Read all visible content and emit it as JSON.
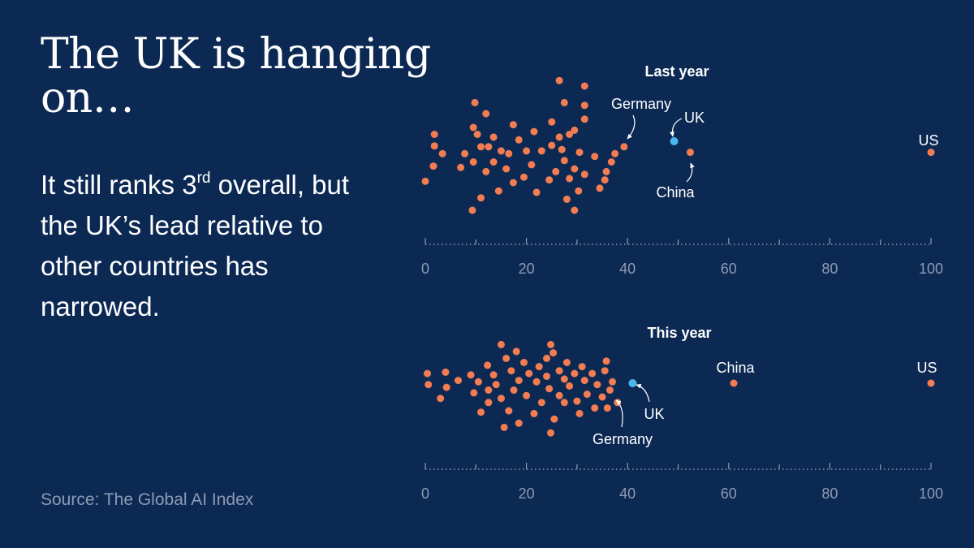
{
  "headline": {
    "title": "The UK is hanging on…",
    "subtitle_pre": "It still ranks 3",
    "subtitle_sup": "rd",
    "subtitle_post": " overall, but the UK’s lead relative to other countries has narrowed."
  },
  "source": "Source: The Global AI Index",
  "colors": {
    "background": "#0c2954",
    "dot": "#f27d52",
    "uk": "#4bb8ec",
    "axis": "#8e9bb2",
    "text": "#ffffff"
  },
  "chart_data": [
    {
      "type": "scatter",
      "title": "Last year",
      "xlim": [
        0,
        100
      ],
      "ticks": [
        0,
        20,
        40,
        60,
        80,
        100
      ],
      "tick_labels": [
        "0",
        "20",
        "40",
        "60",
        "80",
        "100"
      ],
      "annotations": {
        "germany_label": "Germany",
        "uk_label": "UK",
        "china_label": "China",
        "us_label": "US"
      },
      "highlighted": [
        {
          "name": "Germany",
          "x": 39.3,
          "y": 0.3
        },
        {
          "name": "UK",
          "x": 49.2,
          "y": 0.5
        },
        {
          "name": "China",
          "x": 52.4,
          "y": 0.1
        },
        {
          "name": "US",
          "x": 100,
          "y": 0.1
        }
      ],
      "others": [
        {
          "x": 0,
          "y": -0.95
        },
        {
          "x": 1.6,
          "y": -0.4
        },
        {
          "x": 1.8,
          "y": 0.33
        },
        {
          "x": 1.8,
          "y": 0.75
        },
        {
          "x": 3.4,
          "y": 0.05
        },
        {
          "x": 7,
          "y": -0.45
        },
        {
          "x": 7.8,
          "y": 0.05
        },
        {
          "x": 9.3,
          "y": -2.0
        },
        {
          "x": 9.5,
          "y": -0.25
        },
        {
          "x": 9.5,
          "y": 1.0
        },
        {
          "x": 9.8,
          "y": 1.9
        },
        {
          "x": 10.3,
          "y": 0.75
        },
        {
          "x": 11,
          "y": -1.55
        },
        {
          "x": 11,
          "y": 0.3
        },
        {
          "x": 12,
          "y": -0.6
        },
        {
          "x": 12,
          "y": 1.5
        },
        {
          "x": 12.5,
          "y": 0.3
        },
        {
          "x": 13.5,
          "y": -0.25
        },
        {
          "x": 13.5,
          "y": 0.65
        },
        {
          "x": 14.5,
          "y": -1.3
        },
        {
          "x": 15,
          "y": 0.15
        },
        {
          "x": 16,
          "y": -0.5
        },
        {
          "x": 16.5,
          "y": 0.05
        },
        {
          "x": 17.4,
          "y": -1.0
        },
        {
          "x": 17.4,
          "y": 1.1
        },
        {
          "x": 18.5,
          "y": 0.55
        },
        {
          "x": 19.5,
          "y": -0.8
        },
        {
          "x": 20,
          "y": 0.15
        },
        {
          "x": 21,
          "y": -0.35
        },
        {
          "x": 21.5,
          "y": 0.85
        },
        {
          "x": 22,
          "y": -1.35
        },
        {
          "x": 23,
          "y": 0.15
        },
        {
          "x": 24.5,
          "y": -0.9
        },
        {
          "x": 25,
          "y": 0.35
        },
        {
          "x": 25,
          "y": 1.2
        },
        {
          "x": 25.8,
          "y": -0.6
        },
        {
          "x": 26.5,
          "y": 0.65
        },
        {
          "x": 26.5,
          "y": 2.7
        },
        {
          "x": 27,
          "y": 0.2
        },
        {
          "x": 27.5,
          "y": -0.2
        },
        {
          "x": 27.5,
          "y": 1.9
        },
        {
          "x": 28,
          "y": -1.6
        },
        {
          "x": 28.5,
          "y": -0.85
        },
        {
          "x": 28.5,
          "y": 0.75
        },
        {
          "x": 29.5,
          "y": -0.5
        },
        {
          "x": 29.5,
          "y": -2.0
        },
        {
          "x": 29.5,
          "y": 0.9
        },
        {
          "x": 30.3,
          "y": -1.3
        },
        {
          "x": 30.5,
          "y": 0.1
        },
        {
          "x": 31.5,
          "y": 1.3
        },
        {
          "x": 31.5,
          "y": 1.8
        },
        {
          "x": 31.5,
          "y": 2.5
        },
        {
          "x": 31.5,
          "y": -0.7
        },
        {
          "x": 33.5,
          "y": -0.05
        },
        {
          "x": 34.5,
          "y": -1.2
        },
        {
          "x": 35.5,
          "y": -0.9
        },
        {
          "x": 35.8,
          "y": -0.6
        },
        {
          "x": 36.8,
          "y": -0.25
        },
        {
          "x": 37.5,
          "y": 0.05
        }
      ]
    },
    {
      "type": "scatter",
      "title": "This year",
      "xlim": [
        0,
        100
      ],
      "ticks": [
        0,
        20,
        40,
        60,
        80,
        100
      ],
      "tick_labels": [
        "0",
        "20",
        "40",
        "60",
        "80",
        "100"
      ],
      "annotations": {
        "china_label": "China",
        "us_label": "US",
        "uk_label": "UK",
        "germany_label": "Germany"
      },
      "highlighted": [
        {
          "name": "UK",
          "x": 41,
          "y": 0
        },
        {
          "name": "Germany",
          "x": 38,
          "y": -0.7
        },
        {
          "name": "China",
          "x": 61,
          "y": 0
        },
        {
          "name": "US",
          "x": 100,
          "y": 0
        }
      ],
      "others": [
        {
          "x": 0.4,
          "y": 0.35
        },
        {
          "x": 0.6,
          "y": -0.05
        },
        {
          "x": 3,
          "y": -0.55
        },
        {
          "x": 4,
          "y": 0.4
        },
        {
          "x": 4.2,
          "y": -0.15
        },
        {
          "x": 6.5,
          "y": 0.1
        },
        {
          "x": 9,
          "y": 0.3
        },
        {
          "x": 9.6,
          "y": -0.35
        },
        {
          "x": 10.5,
          "y": 0.05
        },
        {
          "x": 11,
          "y": -1.05
        },
        {
          "x": 12.3,
          "y": 0.65
        },
        {
          "x": 12.5,
          "y": -0.7
        },
        {
          "x": 12.5,
          "y": -0.25
        },
        {
          "x": 13.5,
          "y": 0.3
        },
        {
          "x": 14,
          "y": -0.05
        },
        {
          "x": 15,
          "y": -0.55
        },
        {
          "x": 15,
          "y": 1.4
        },
        {
          "x": 15.6,
          "y": -1.6
        },
        {
          "x": 16,
          "y": 0.9
        },
        {
          "x": 16.5,
          "y": -1.0
        },
        {
          "x": 17,
          "y": 0.45
        },
        {
          "x": 17.5,
          "y": -0.25
        },
        {
          "x": 18,
          "y": 1.15
        },
        {
          "x": 18.5,
          "y": 0.1
        },
        {
          "x": 18.5,
          "y": -1.45
        },
        {
          "x": 19.5,
          "y": 0.75
        },
        {
          "x": 20,
          "y": -0.45
        },
        {
          "x": 20.5,
          "y": 0.35
        },
        {
          "x": 21.5,
          "y": -1.1
        },
        {
          "x": 22,
          "y": 0.05
        },
        {
          "x": 22.5,
          "y": 0.6
        },
        {
          "x": 23,
          "y": -0.7
        },
        {
          "x": 24,
          "y": 0.25
        },
        {
          "x": 24,
          "y": 0.9
        },
        {
          "x": 24.5,
          "y": -0.2
        },
        {
          "x": 24.8,
          "y": 1.4
        },
        {
          "x": 24.8,
          "y": -1.8
        },
        {
          "x": 25.3,
          "y": 1.1
        },
        {
          "x": 25.5,
          "y": -1.3
        },
        {
          "x": 26.5,
          "y": 0.45
        },
        {
          "x": 26.5,
          "y": -0.45
        },
        {
          "x": 27.5,
          "y": 0.15
        },
        {
          "x": 27.5,
          "y": -0.7
        },
        {
          "x": 28,
          "y": 0.75
        },
        {
          "x": 28.5,
          "y": -0.1
        },
        {
          "x": 29.5,
          "y": 0.35
        },
        {
          "x": 30,
          "y": -0.65
        },
        {
          "x": 30.5,
          "y": -1.1
        },
        {
          "x": 31,
          "y": 0.6
        },
        {
          "x": 31.5,
          "y": 0.1
        },
        {
          "x": 32,
          "y": -0.4
        },
        {
          "x": 33,
          "y": 0.35
        },
        {
          "x": 33.5,
          "y": -0.9
        },
        {
          "x": 34,
          "y": -0.05
        },
        {
          "x": 35,
          "y": -0.5
        },
        {
          "x": 35.5,
          "y": 0.45
        },
        {
          "x": 35.8,
          "y": 0.8
        },
        {
          "x": 36,
          "y": -0.9
        },
        {
          "x": 36.5,
          "y": -0.25
        },
        {
          "x": 37,
          "y": 0.05
        }
      ]
    }
  ]
}
